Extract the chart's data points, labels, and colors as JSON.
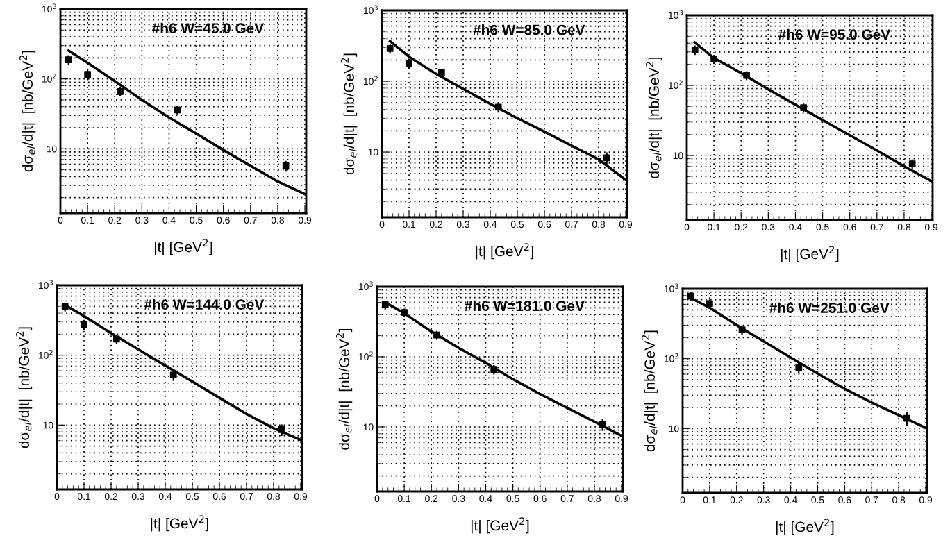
{
  "chart_data": [
    {
      "type": "scatter",
      "title": "#h6 W=45.0 GeV",
      "xlabel": "|t| [GeV$^{2}$]",
      "ylabel": "dσ$_{el}$/d|t|  [nb/GeV$^{2}$]",
      "log": "y",
      "grid": true,
      "xlim": [
        0,
        0.905
      ],
      "ylim": [
        1.2,
        1000
      ],
      "xticks": [
        0,
        0.1,
        0.2,
        0.3,
        0.4,
        0.5,
        0.6,
        0.7,
        0.8,
        0.9
      ],
      "yticks": [
        {
          "value": 10,
          "label": "10"
        },
        {
          "value": 100,
          "label": "10$^{2}$"
        },
        {
          "value": 1000,
          "label": "10$^{3}$"
        }
      ],
      "series": [
        {
          "marker": "square",
          "color": "#000000",
          "x": [
            0.03,
            0.1,
            0.22,
            0.43,
            0.83
          ],
          "values": [
            188,
            116,
            66,
            36,
            5.7
          ],
          "errors": [
            30,
            20,
            10,
            5,
            1
          ]
        },
        {
          "type": "line",
          "marker": "none",
          "line_style": "solid",
          "color": "#000000",
          "x": [
            0.03,
            0.1,
            0.2,
            0.3,
            0.4,
            0.5,
            0.6,
            0.7,
            0.8,
            0.905
          ],
          "values": [
            254,
            170,
            93,
            50,
            28,
            16.5,
            9.6,
            5.7,
            3.4,
            2.2
          ]
        }
      ]
    },
    {
      "type": "scatter",
      "title": "#h6 W=85.0 GeV",
      "xlabel": "|t| [GeV$^{2}$]",
      "ylabel": "dσ$_{el}$/d|t|  [nb/GeV$^{2}$]",
      "log": "y",
      "grid": true,
      "xlim": [
        0,
        0.905
      ],
      "ylim": [
        1.2,
        1000
      ],
      "xticks": [
        0,
        0.1,
        0.2,
        0.3,
        0.4,
        0.5,
        0.6,
        0.7,
        0.8,
        0.9
      ],
      "yticks": [
        {
          "value": 10,
          "label": "10"
        },
        {
          "value": 100,
          "label": "10$^{2}$"
        },
        {
          "value": 1000,
          "label": "10$^{3}$"
        }
      ],
      "series": [
        {
          "marker": "square",
          "color": "#000000",
          "x": [
            0.03,
            0.1,
            0.22,
            0.43,
            0.83
          ],
          "values": [
            290,
            178,
            132,
            43,
            8.3
          ],
          "errors": [
            45,
            30,
            18,
            7,
            1.6
          ]
        },
        {
          "type": "line",
          "marker": "none",
          "line_style": "solid",
          "color": "#000000",
          "x": [
            0.03,
            0.1,
            0.2,
            0.3,
            0.4,
            0.5,
            0.6,
            0.7,
            0.8,
            0.905
          ],
          "values": [
            368,
            222,
            127,
            78,
            48,
            30,
            19.4,
            12.3,
            7.9,
            3.9
          ]
        }
      ]
    },
    {
      "type": "scatter",
      "title": "#h6 W=95.0 GeV",
      "xlabel": "|t| [GeV$^{2}$]",
      "ylabel": "dσ$_{el}$/d|t|  [nb/GeV$^{2}$]",
      "log": "y",
      "grid": true,
      "xlim": [
        0,
        0.905
      ],
      "ylim": [
        1.2,
        1000
      ],
      "xticks": [
        0,
        0.1,
        0.2,
        0.3,
        0.4,
        0.5,
        0.6,
        0.7,
        0.8,
        0.9
      ],
      "yticks": [
        {
          "value": 10,
          "label": "10"
        },
        {
          "value": 100,
          "label": "10$^{2}$"
        },
        {
          "value": 1000,
          "label": "10$^{3}$"
        }
      ],
      "series": [
        {
          "marker": "square",
          "color": "#000000",
          "x": [
            0.03,
            0.1,
            0.22,
            0.43,
            0.83
          ],
          "values": [
            321,
            237,
            139,
            48,
            7.6
          ],
          "errors": [
            50,
            35,
            20,
            7,
            1.2
          ]
        },
        {
          "type": "line",
          "marker": "none",
          "line_style": "solid",
          "color": "#000000",
          "x": [
            0.03,
            0.1,
            0.2,
            0.3,
            0.4,
            0.5,
            0.6,
            0.7,
            0.8,
            0.905
          ],
          "values": [
            408,
            245,
            150,
            88,
            53,
            32,
            19.5,
            11.8,
            7.0,
            4.2
          ]
        }
      ]
    },
    {
      "type": "scatter",
      "title": "#h6 W=144.0 GeV",
      "xlabel": "|t| [GeV$^{2}$]",
      "ylabel": "dσ$_{el}$/d|t|  [nb/GeV$^{2}$]",
      "log": "y",
      "grid": true,
      "xlim": [
        0,
        0.905
      ],
      "ylim": [
        1.2,
        1000
      ],
      "xticks": [
        0,
        0.1,
        0.2,
        0.3,
        0.4,
        0.5,
        0.6,
        0.7,
        0.8,
        0.9
      ],
      "yticks": [
        {
          "value": 10,
          "label": "10"
        },
        {
          "value": 100,
          "label": "10$^{2}$"
        },
        {
          "value": 1000,
          "label": "10$^{3}$"
        }
      ],
      "series": [
        {
          "marker": "square",
          "color": "#000000",
          "x": [
            0.03,
            0.1,
            0.22,
            0.43,
            0.83
          ],
          "values": [
            493,
            275,
            170,
            52,
            8.6
          ],
          "errors": [
            70,
            45,
            25,
            9,
            1.6
          ]
        },
        {
          "type": "line",
          "marker": "none",
          "line_style": "solid",
          "color": "#000000",
          "x": [
            0.03,
            0.1,
            0.2,
            0.3,
            0.4,
            0.5,
            0.6,
            0.7,
            0.8,
            0.905
          ],
          "values": [
            520,
            364,
            206,
            121,
            71,
            42,
            24.5,
            14.4,
            9.0,
            6.0
          ]
        }
      ]
    },
    {
      "type": "scatter",
      "title": "#h6 W=181.0 GeV",
      "xlabel": "|t| [GeV$^{2}$]",
      "ylabel": "dσ$_{el}$/d|t|  [nb/GeV$^{2}$]",
      "log": "y",
      "grid": true,
      "xlim": [
        0,
        0.905
      ],
      "ylim": [
        1.2,
        1000
      ],
      "xticks": [
        0,
        0.1,
        0.2,
        0.3,
        0.4,
        0.5,
        0.6,
        0.7,
        0.8,
        0.9
      ],
      "yticks": [
        {
          "value": 10,
          "label": "10"
        },
        {
          "value": 100,
          "label": "10$^{2}$"
        },
        {
          "value": 1000,
          "label": "10$^{3}$"
        }
      ],
      "series": [
        {
          "marker": "square",
          "color": "#000000",
          "x": [
            0.03,
            0.1,
            0.22,
            0.43,
            0.83
          ],
          "values": [
            553,
            428,
            204,
            66,
            10.8
          ],
          "errors": [
            80,
            60,
            30,
            10,
            2
          ]
        },
        {
          "type": "line",
          "marker": "none",
          "line_style": "solid",
          "color": "#000000",
          "x": [
            0.03,
            0.1,
            0.2,
            0.3,
            0.4,
            0.5,
            0.6,
            0.7,
            0.8,
            0.905
          ],
          "values": [
            597,
            419,
            229,
            134,
            82,
            48,
            29.5,
            18.7,
            11.9,
            7.3
          ]
        }
      ]
    },
    {
      "type": "scatter",
      "title": "#h6 W=251.0 GeV",
      "xlabel": "|t| [GeV$^{2}$]",
      "ylabel": "dσ$_{el}$/d|t|  [nb/GeV$^{2}$]",
      "log": "y",
      "grid": true,
      "xlim": [
        0,
        0.905
      ],
      "ylim": [
        1.2,
        1000
      ],
      "xticks": [
        0,
        0.1,
        0.2,
        0.3,
        0.4,
        0.5,
        0.6,
        0.7,
        0.8,
        0.9
      ],
      "yticks": [
        {
          "value": 10,
          "label": "10"
        },
        {
          "value": 100,
          "label": "10$^{2}$"
        },
        {
          "value": 1000,
          "label": "10$^{3}$"
        }
      ],
      "series": [
        {
          "marker": "square",
          "color": "#000000",
          "x": [
            0.03,
            0.1,
            0.22,
            0.43,
            0.83
          ],
          "values": [
            783,
            614,
            259,
            75,
            14
          ],
          "errors": [
            110,
            90,
            40,
            14,
            3
          ]
        },
        {
          "type": "line",
          "marker": "none",
          "line_style": "solid",
          "color": "#000000",
          "x": [
            0.03,
            0.1,
            0.2,
            0.3,
            0.4,
            0.5,
            0.6,
            0.7,
            0.8,
            0.905
          ],
          "values": [
            738,
            535,
            302,
            177,
            104,
            61,
            37,
            23.5,
            15.5,
            10
          ]
        }
      ]
    }
  ]
}
